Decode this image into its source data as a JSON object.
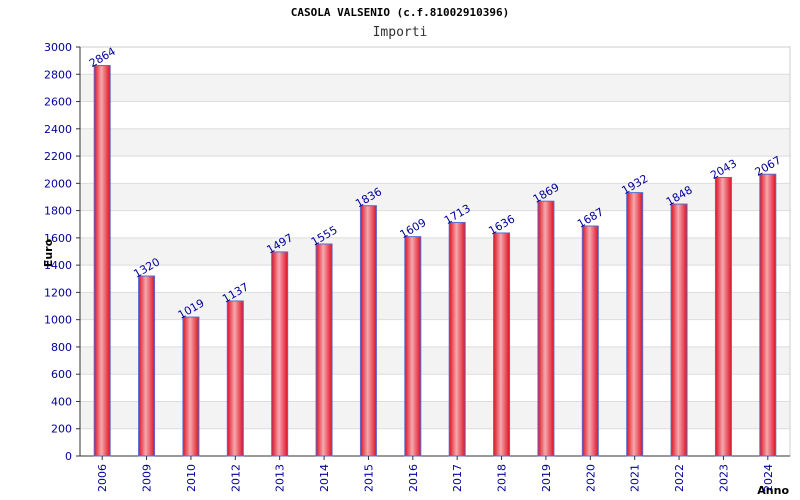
{
  "chart_data": {
    "type": "bar",
    "title": "CASOLA VALSENIO (c.f.81002910396)",
    "subtitle": "Importi",
    "ylabel": "Euro",
    "xlabel": "Anno",
    "ylim": [
      0,
      3000
    ],
    "y_ticks": [
      0,
      200,
      400,
      600,
      800,
      1000,
      1200,
      1400,
      1600,
      1800,
      2000,
      2200,
      2400,
      2600,
      2800,
      3000
    ],
    "categories": [
      "2006",
      "2009",
      "2010",
      "2012",
      "2013",
      "2014",
      "2015",
      "2016",
      "2017",
      "2018",
      "2019",
      "2020",
      "2021",
      "2022",
      "2023",
      "2024"
    ],
    "values": [
      2864,
      1320,
      1019,
      1137,
      1497,
      1555,
      1836,
      1609,
      1713,
      1636,
      1869,
      1687,
      1932,
      1848,
      2043,
      2067
    ],
    "grid": true,
    "colors": {
      "bar": "#dd1122",
      "bar_highlight": "#f5a8ae",
      "bar_edge": "#5a6bd0",
      "band_alt": "#f3f3f3",
      "axis_text": "#000099",
      "label_text": "#000099"
    }
  }
}
